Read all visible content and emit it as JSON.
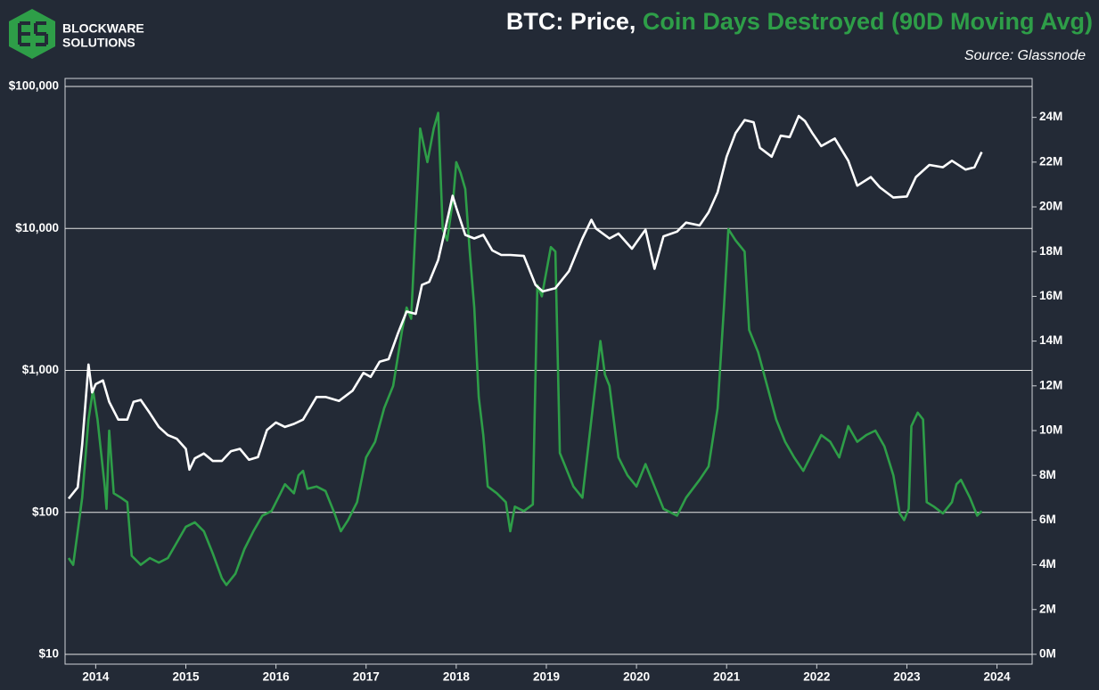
{
  "logo": [
    "BLOCKWARE",
    "SOLUTIONS"
  ],
  "chart_data": {
    "type": "line",
    "source": "Source: Glassnode",
    "yscale": "log",
    "grid": true,
    "xlim": [
      2013.66,
      2024.39
    ],
    "xticks": [
      2014,
      2015,
      2016,
      2017,
      2018,
      2019,
      2020,
      2021,
      2022,
      2023,
      2024
    ],
    "ylim": [
      8.53,
      113900
    ],
    "yticks": [
      {
        "value": 10,
        "label": "$10"
      },
      {
        "value": 100,
        "label": "$100"
      },
      {
        "value": 1000,
        "label": "$1,000"
      },
      {
        "value": 10000,
        "label": "$10,000"
      },
      {
        "value": 100000,
        "label": "$100,000"
      }
    ],
    "y2lim": [
      -0.44,
      25.74
    ],
    "y2ticks": [
      {
        "value": 0,
        "label": "0M"
      },
      {
        "value": 2,
        "label": "2M"
      },
      {
        "value": 4,
        "label": "4M"
      },
      {
        "value": 6,
        "label": "6M"
      },
      {
        "value": 8,
        "label": "8M"
      },
      {
        "value": 10,
        "label": "10M"
      },
      {
        "value": 12,
        "label": "12M"
      },
      {
        "value": 14,
        "label": "14M"
      },
      {
        "value": 16,
        "label": "16M"
      },
      {
        "value": 18,
        "label": "18M"
      },
      {
        "value": 20,
        "label": "20M"
      },
      {
        "value": 22,
        "label": "22M"
      },
      {
        "value": 24,
        "label": "24M"
      }
    ],
    "series": [
      {
        "name": "BTC: Price,",
        "color": "#ffffff",
        "axis": "y",
        "x": [
          2013.7,
          2013.8,
          2013.85,
          2013.92,
          2013.96,
          2014.0,
          2014.08,
          2014.15,
          2014.25,
          2014.35,
          2014.42,
          2014.5,
          2014.6,
          2014.7,
          2014.8,
          2014.9,
          2015.0,
          2015.04,
          2015.1,
          2015.2,
          2015.3,
          2015.4,
          2015.5,
          2015.6,
          2015.7,
          2015.8,
          2015.9,
          2016.0,
          2016.1,
          2016.2,
          2016.3,
          2016.45,
          2016.55,
          2016.7,
          2016.85,
          2016.97,
          2017.05,
          2017.15,
          2017.25,
          2017.35,
          2017.45,
          2017.55,
          2017.62,
          2017.7,
          2017.8,
          2017.88,
          2017.96,
          2018.0,
          2018.1,
          2018.2,
          2018.3,
          2018.4,
          2018.5,
          2018.6,
          2018.75,
          2018.88,
          2018.96,
          2019.1,
          2019.25,
          2019.4,
          2019.5,
          2019.55,
          2019.7,
          2019.8,
          2019.95,
          2020.0,
          2020.1,
          2020.2,
          2020.3,
          2020.45,
          2020.55,
          2020.7,
          2020.8,
          2020.9,
          2021.0,
          2021.1,
          2021.2,
          2021.3,
          2021.37,
          2021.5,
          2021.6,
          2021.7,
          2021.8,
          2021.87,
          2021.95,
          2022.05,
          2022.2,
          2022.35,
          2022.45,
          2022.6,
          2022.7,
          2022.85,
          2023.0,
          2023.1,
          2023.25,
          2023.4,
          2023.5,
          2023.65,
          2023.75,
          2023.83
        ],
        "values": [
          125,
          150,
          300,
          1100,
          700,
          800,
          850,
          600,
          450,
          450,
          600,
          620,
          500,
          400,
          350,
          330,
          280,
          200,
          240,
          260,
          230,
          230,
          270,
          280,
          235,
          245,
          380,
          430,
          400,
          420,
          450,
          650,
          650,
          610,
          720,
          960,
          900,
          1150,
          1200,
          1800,
          2600,
          2500,
          4000,
          4200,
          6000,
          10000,
          17000,
          14000,
          9000,
          8500,
          9000,
          7000,
          6500,
          6500,
          6400,
          4000,
          3600,
          3800,
          5000,
          8500,
          11500,
          10000,
          8500,
          9200,
          7200,
          8000,
          9800,
          5200,
          8800,
          9500,
          11000,
          10500,
          13000,
          18000,
          32000,
          47000,
          58000,
          56000,
          37000,
          32000,
          45000,
          44000,
          62000,
          57000,
          47000,
          38000,
          43000,
          30000,
          20000,
          23000,
          19500,
          16500,
          16800,
          23000,
          28000,
          27000,
          30000,
          26000,
          27000,
          34500
        ]
      },
      {
        "name": "Coin Days Destroyed (90D Moving Avg)",
        "color": "#2e9e48",
        "axis": "y2",
        "x": [
          2013.7,
          2013.75,
          2013.8,
          2013.85,
          2013.92,
          2013.97,
          2014.02,
          2014.1,
          2014.12,
          2014.15,
          2014.2,
          2014.28,
          2014.35,
          2014.4,
          2014.5,
          2014.6,
          2014.7,
          2014.8,
          2014.9,
          2015.0,
          2015.1,
          2015.2,
          2015.3,
          2015.4,
          2015.45,
          2015.55,
          2015.65,
          2015.75,
          2015.85,
          2015.95,
          2016.05,
          2016.1,
          2016.2,
          2016.25,
          2016.3,
          2016.35,
          2016.45,
          2016.55,
          2016.65,
          2016.72,
          2016.8,
          2016.9,
          2017.0,
          2017.1,
          2017.2,
          2017.3,
          2017.4,
          2017.45,
          2017.5,
          2017.6,
          2017.68,
          2017.75,
          2017.8,
          2017.85,
          2017.9,
          2017.97,
          2018.0,
          2018.05,
          2018.1,
          2018.15,
          2018.2,
          2018.25,
          2018.3,
          2018.35,
          2018.45,
          2018.55,
          2018.6,
          2018.65,
          2018.75,
          2018.85,
          2018.9,
          2018.95,
          2019.05,
          2019.1,
          2019.15,
          2019.2,
          2019.3,
          2019.4,
          2019.5,
          2019.6,
          2019.65,
          2019.7,
          2019.8,
          2019.9,
          2020.0,
          2020.1,
          2020.2,
          2020.3,
          2020.45,
          2020.55,
          2020.7,
          2020.8,
          2020.9,
          2020.97,
          2021.02,
          2021.1,
          2021.2,
          2021.25,
          2021.35,
          2021.45,
          2021.55,
          2021.65,
          2021.75,
          2021.85,
          2021.95,
          2022.05,
          2022.15,
          2022.25,
          2022.35,
          2022.45,
          2022.55,
          2022.65,
          2022.75,
          2022.85,
          2022.92,
          2022.97,
          2023.02,
          2023.05,
          2023.12,
          2023.18,
          2023.22,
          2023.3,
          2023.4,
          2023.5,
          2023.55,
          2023.6,
          2023.7,
          2023.78,
          2023.83
        ],
        "values": [
          4.3,
          4.0,
          5.5,
          7.0,
          10.5,
          11.8,
          10.5,
          7.5,
          6.5,
          10.0,
          7.2,
          7.0,
          6.8,
          4.4,
          4.0,
          4.3,
          4.1,
          4.3,
          5.0,
          5.7,
          5.9,
          5.5,
          4.5,
          3.4,
          3.1,
          3.6,
          4.7,
          5.5,
          6.2,
          6.4,
          7.2,
          7.6,
          7.2,
          8.0,
          8.2,
          7.4,
          7.5,
          7.3,
          6.3,
          5.5,
          6.0,
          6.8,
          8.8,
          9.5,
          11.0,
          12.0,
          14.5,
          15.5,
          15.0,
          23.5,
          22.0,
          23.5,
          24.2,
          19.0,
          18.5,
          20.5,
          22.0,
          21.5,
          20.8,
          18.0,
          15.5,
          11.5,
          9.8,
          7.5,
          7.2,
          6.8,
          5.5,
          6.6,
          6.4,
          6.7,
          16.5,
          16.0,
          18.2,
          18.0,
          9.0,
          8.5,
          7.5,
          7.0,
          10.5,
          14.0,
          12.5,
          12.0,
          8.8,
          8.0,
          7.5,
          8.5,
          7.5,
          6.5,
          6.2,
          7.0,
          7.8,
          8.4,
          11.0,
          15.5,
          19.0,
          18.5,
          18.0,
          14.5,
          13.5,
          12.0,
          10.5,
          9.5,
          8.8,
          8.2,
          9.0,
          9.8,
          9.5,
          8.8,
          10.2,
          9.5,
          9.8,
          10.0,
          9.3,
          8.0,
          6.3,
          6.0,
          6.5,
          10.2,
          10.8,
          10.5,
          6.8,
          6.6,
          6.3,
          6.8,
          7.6,
          7.8,
          7.0,
          6.2,
          6.4
        ]
      }
    ]
  }
}
